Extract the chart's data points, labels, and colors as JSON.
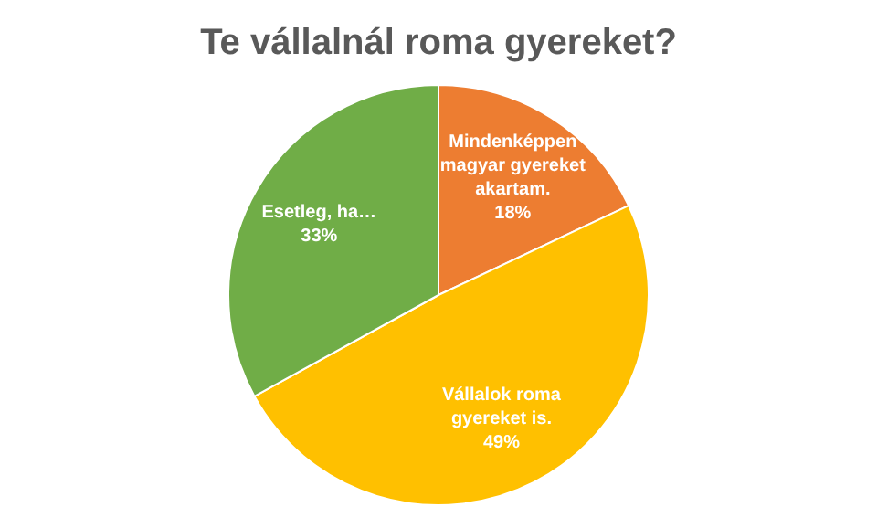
{
  "chart_data": {
    "type": "pie",
    "title": "Te vállalnál roma gyereket?",
    "categories": [
      "Mindenképpen magyar gyereket akartam.",
      "Vállalok roma gyereket is.",
      "Esetleg, ha…"
    ],
    "values": [
      18,
      49,
      33
    ],
    "colors": [
      "#ed7d31",
      "#ffc000",
      "#70ad47"
    ],
    "value_labels": [
      "18%",
      "49%",
      "33%"
    ],
    "legend": false
  }
}
